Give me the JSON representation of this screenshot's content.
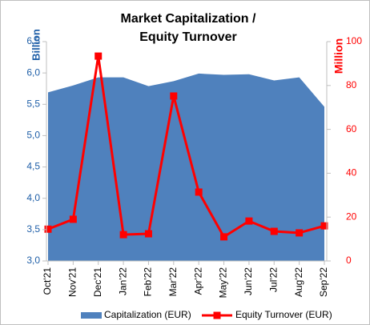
{
  "chart_data": {
    "type": "combo",
    "title": [
      "Market Capitalization /",
      "Equity Turnover"
    ],
    "y_label": "Billion",
    "y2_label": "Million",
    "categories": [
      "Oct'21",
      "Nov'21",
      "Dec'21",
      "Jan'22",
      "Feb'22",
      "Mar'22",
      "Apr'22",
      "May'22",
      "Jun'22",
      "Jul'22",
      "Aug'22",
      "Sep'22"
    ],
    "series": [
      {
        "name": "Capitalization (EUR)",
        "type": "area",
        "color": "#4f81bd",
        "values": [
          5.69,
          5.8,
          5.93,
          5.93,
          5.79,
          5.87,
          5.99,
          5.97,
          5.98,
          5.88,
          5.93,
          5.46
        ]
      },
      {
        "name": "Equity Turnover (EUR)",
        "type": "line",
        "axis": "y2",
        "color": "#ff0000",
        "values": [
          14.5,
          19,
          93.4,
          12,
          12.4,
          75.2,
          31.4,
          11,
          18.2,
          13.5,
          12.8,
          16
        ]
      }
    ],
    "ylim": [
      3,
      6.5
    ],
    "yticks": [
      {
        "value": 3,
        "label": "3,0"
      },
      {
        "value": 3.5,
        "label": "3,5"
      },
      {
        "value": 4,
        "label": "4,0"
      },
      {
        "value": 4.5,
        "label": "4,5"
      },
      {
        "value": 5,
        "label": "5,0"
      },
      {
        "value": 5.5,
        "label": "5,5"
      },
      {
        "value": 6,
        "label": "6,0"
      },
      {
        "value": 6.5,
        "label": "6,5"
      }
    ],
    "y2lim": [
      0,
      100
    ],
    "y2ticks": [
      0,
      20,
      40,
      60,
      80,
      100
    ],
    "y_color": "#1f5fa8",
    "y2_color": "#ff0000"
  }
}
